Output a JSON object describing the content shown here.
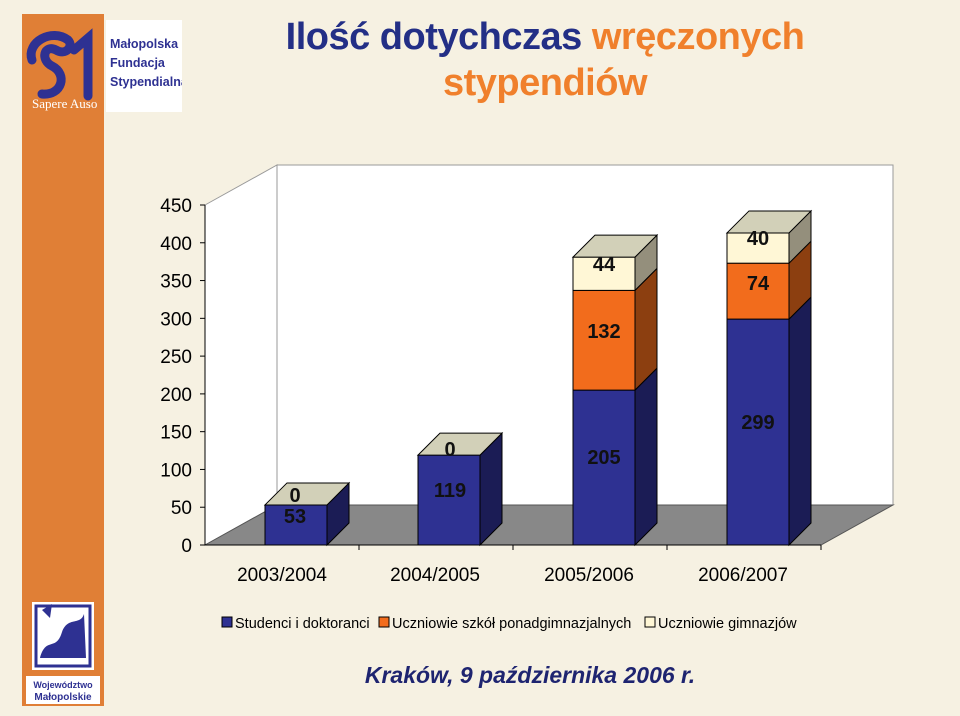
{
  "header": {
    "title_part1": "Ilość dotychczas",
    "title_part2": "wręczonych stypendiów"
  },
  "logos": {
    "foundation_line1": "Małopolska",
    "foundation_line2": "Fundacja",
    "foundation_line3": "Stypendialna",
    "motto": "Sapere Auso",
    "region_line1": "Województwo",
    "region_line2": "Małopolskie"
  },
  "colors": {
    "sidebar": "#e07f36",
    "series_students": "#2e3192",
    "series_secondary": "#f26c1c",
    "series_gymnasium": "#fff7d6",
    "title_dark": "#232f86",
    "title_orange": "#f0802c"
  },
  "chart_data": {
    "type": "bar",
    "stacked": true,
    "three_d": true,
    "categories": [
      "2003/2004",
      "2004/2005",
      "2005/2006",
      "2006/2007"
    ],
    "series": [
      {
        "name": "Studenci i doktoranci",
        "values": [
          53,
          119,
          205,
          299
        ],
        "labels": [
          "53",
          "119",
          "205",
          "299"
        ]
      },
      {
        "name": "Uczniowie szkół ponadgimnazjalnych",
        "values": [
          0,
          0,
          132,
          74
        ],
        "labels": [
          "0",
          "0",
          "132",
          "74"
        ]
      },
      {
        "name": "Uczniowie gimnazjów",
        "values": [
          0,
          0,
          44,
          40
        ],
        "labels": [
          "",
          "",
          "44",
          "40"
        ]
      }
    ],
    "ylim": [
      0,
      450
    ],
    "yticks": [
      "0",
      "50",
      "100",
      "150",
      "200",
      "250",
      "300",
      "350",
      "400",
      "450"
    ],
    "legend_position": "bottom",
    "gridlines": false
  },
  "footer": {
    "date": "Kraków, 9 października 2006 r."
  }
}
